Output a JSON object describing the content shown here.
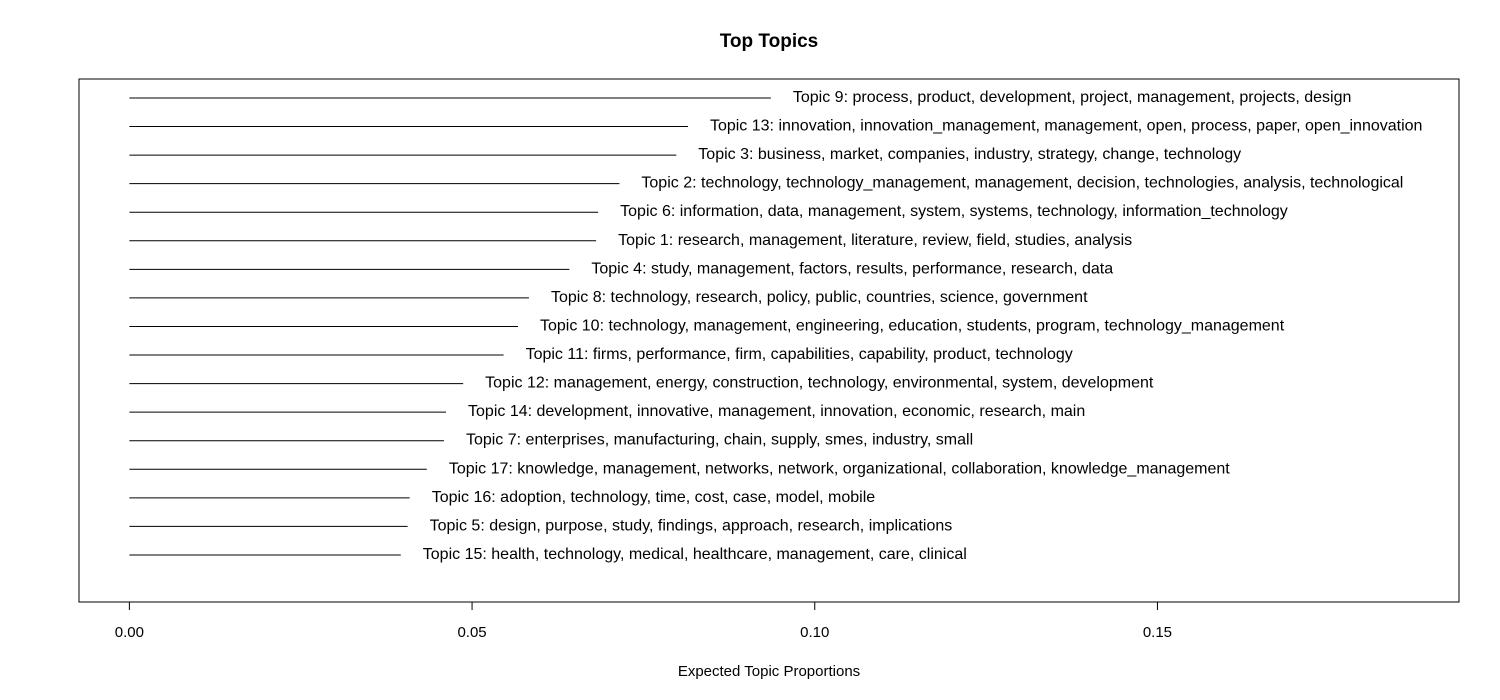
{
  "chart_data": {
    "type": "bar",
    "title": "Top Topics",
    "xlabel": "Expected Topic Proportions",
    "ylabel": "",
    "xlim": [
      -0.00735,
      0.194
    ],
    "xticks": [
      0.0,
      0.05,
      0.1,
      0.15
    ],
    "xtick_labels": [
      "0.00",
      "0.05",
      "0.10",
      "0.15"
    ],
    "grid": false,
    "categories": [
      "Topic 9: process, product, development, project, management, projects, design",
      "Topic 13: innovation, innovation_management, management, open, process, paper, open_innovation",
      "Topic 3: business, market, companies, industry, strategy, change, technology",
      "Topic 2: technology, technology_management, management, decision, technologies, analysis, technological",
      "Topic 6: information, data, management, system, systems, technology, information_technology",
      "Topic 1: research, management, literature, review, field, studies, analysis",
      "Topic 4: study, management, factors, results, performance, research, data",
      "Topic 8: technology, research, policy, public, countries, science, government",
      "Topic 10: technology, management, engineering, education, students, program, technology_management",
      "Topic 11: firms, performance, firm, capabilities, capability, product, technology",
      "Topic 12: management, energy, construction, technology, environmental, system, development",
      "Topic 14: development, innovative, management, innovation, economic, research, main",
      "Topic 7: enterprises, manufacturing, chain, supply, smes, industry, small",
      "Topic 17: knowledge, management, networks, network, organizational, collaboration, knowledge_management",
      "Topic 16: adoption, technology, time, cost, case, model, mobile",
      "Topic 5: design, purpose, study, findings, approach, research, implications",
      "Topic 15: health, technology, medical, healthcare, management, care, clinical"
    ],
    "values": [
      0.0936,
      0.0815,
      0.0798,
      0.0715,
      0.0684,
      0.0681,
      0.0642,
      0.0583,
      0.0567,
      0.0546,
      0.0487,
      0.0462,
      0.0459,
      0.0434,
      0.0409,
      0.0406,
      0.0396
    ]
  }
}
